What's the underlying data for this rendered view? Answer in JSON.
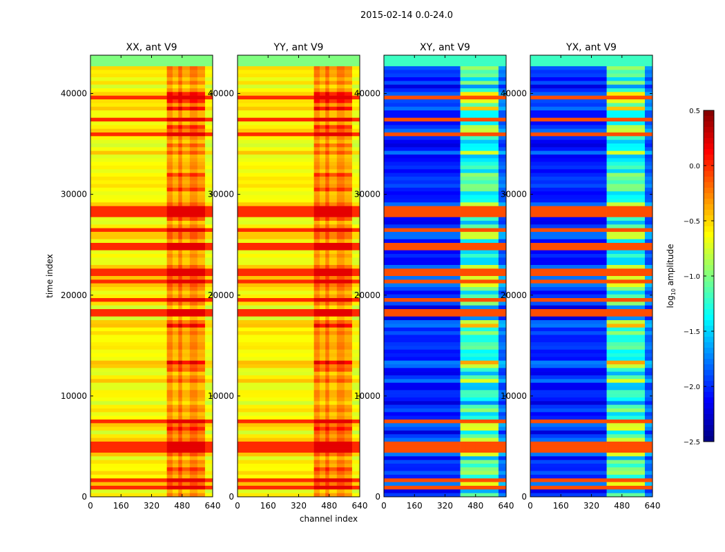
{
  "chart_data": {
    "type": "heatmap",
    "suptitle": "2015-02-14 0.0-24.0",
    "xlabel": "channel index",
    "ylabel": "time index",
    "xlim": [
      0,
      640
    ],
    "ylim": [
      0,
      43800
    ],
    "xticks": [
      "0",
      "160",
      "320",
      "480",
      "640"
    ],
    "yticks": [
      "0",
      "10000",
      "20000",
      "30000",
      "40000"
    ],
    "panels": [
      {
        "title": "XX, ant V9",
        "typical_log_amplitude": -0.6,
        "hot_channel_band": [
          400,
          600
        ],
        "hot_band_log_amplitude": -0.2
      },
      {
        "title": "YY, ant V9",
        "typical_log_amplitude": -0.6,
        "hot_channel_band": [
          400,
          600
        ],
        "hot_band_log_amplitude": -0.2
      },
      {
        "title": "XY, ant V9",
        "typical_log_amplitude": -2.0,
        "hot_channel_band": [
          400,
          600
        ],
        "hot_band_log_amplitude": -1.2
      },
      {
        "title": "YX, ant V9",
        "typical_log_amplitude": -2.0,
        "hot_channel_band": [
          400,
          600
        ],
        "hot_band_log_amplitude": -1.2
      }
    ],
    "colorbar": {
      "label_prefix": "log",
      "label_sub": "10",
      "label_suffix": " amplitude",
      "colormap": "jet",
      "range": [
        -2.5,
        0.5
      ],
      "ticks": [
        "0.5",
        "0.0",
        "−0.5",
        "−1.0",
        "−1.5",
        "−2.0",
        "−2.5"
      ],
      "tick_values": [
        0.5,
        0.0,
        -0.5,
        -1.0,
        -1.5,
        -2.0,
        -2.5
      ]
    }
  }
}
